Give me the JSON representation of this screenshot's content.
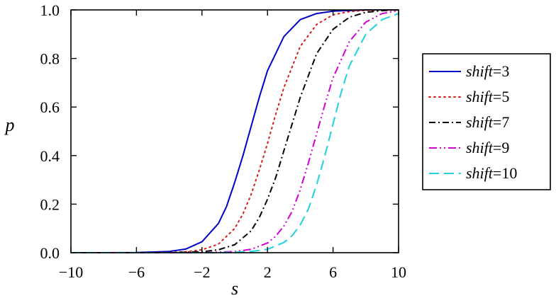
{
  "chart_data": {
    "type": "line",
    "xlabel": "s",
    "ylabel": "p",
    "xlim": [
      -10,
      10
    ],
    "ylim": [
      0,
      1
    ],
    "xticks": [
      -10,
      -6,
      -2,
      2,
      6,
      10
    ],
    "xtick_labels": [
      "−10",
      "−6",
      "−2",
      "2",
      "6",
      "10"
    ],
    "yticks": [
      0,
      0.2,
      0.4,
      0.6,
      0.8,
      1.0
    ],
    "ytick_labels": [
      "0.0",
      "0.2",
      "0.4",
      "0.6",
      "0.8",
      "1.0"
    ],
    "grid": false,
    "legend_position": "right",
    "series": [
      {
        "name": "shift=3",
        "name_italic": "shift",
        "name_rest": "=3",
        "color": "#0000c8",
        "style": "solid",
        "x": [
          -10,
          -8,
          -6,
          -4,
          -3,
          -2,
          -1,
          -0.5,
          0,
          0.5,
          1,
          1.5,
          2,
          3,
          4,
          5,
          6,
          8,
          10
        ],
        "y": [
          0.0,
          0.0,
          0.001,
          0.005,
          0.015,
          0.045,
          0.12,
          0.19,
          0.29,
          0.4,
          0.52,
          0.64,
          0.75,
          0.89,
          0.96,
          0.985,
          0.995,
          1.0,
          1.0
        ]
      },
      {
        "name": "shift=5",
        "name_italic": "shift",
        "name_rest": "=5",
        "color": "#d21e1e",
        "style": "dotted",
        "x": [
          -10,
          -6,
          -4,
          -3,
          -2,
          -1,
          0,
          0.5,
          1,
          1.5,
          2,
          2.5,
          3,
          4,
          5,
          6,
          7,
          8,
          10
        ],
        "y": [
          0.0,
          0.0,
          0.001,
          0.004,
          0.012,
          0.035,
          0.1,
          0.16,
          0.24,
          0.34,
          0.45,
          0.57,
          0.68,
          0.85,
          0.94,
          0.98,
          0.993,
          0.998,
          1.0
        ]
      },
      {
        "name": "shift=7",
        "name_italic": "shift",
        "name_rest": "=7",
        "color": "#000000",
        "style": "dashdot",
        "x": [
          -10,
          -4,
          -2,
          -1,
          0,
          1,
          1.5,
          2,
          2.5,
          3,
          3.5,
          4,
          5,
          6,
          7,
          8,
          9,
          10
        ],
        "y": [
          0.0,
          0.0,
          0.004,
          0.012,
          0.033,
          0.09,
          0.145,
          0.22,
          0.31,
          0.42,
          0.53,
          0.64,
          0.82,
          0.92,
          0.97,
          0.99,
          0.997,
          1.0
        ]
      },
      {
        "name": "shift=9",
        "name_italic": "shift",
        "name_rest": "=9",
        "color": "#d200d2",
        "style": "dashdotdot",
        "x": [
          -10,
          -2,
          0,
          1,
          2,
          2.5,
          3,
          3.5,
          4,
          4.5,
          5,
          5.5,
          6,
          7,
          8,
          9,
          10
        ],
        "y": [
          0.0,
          0.0,
          0.005,
          0.014,
          0.04,
          0.068,
          0.11,
          0.17,
          0.26,
          0.37,
          0.49,
          0.61,
          0.72,
          0.87,
          0.95,
          0.985,
          0.997
        ]
      },
      {
        "name": "shift=10",
        "name_italic": "shift",
        "name_rest": "=10",
        "color": "#1ed2dc",
        "style": "dashed",
        "x": [
          -10,
          -1,
          1,
          2,
          3,
          3.5,
          4,
          4.5,
          5,
          5.5,
          6,
          6.5,
          7,
          8,
          9,
          10
        ],
        "y": [
          0.0,
          0.0,
          0.005,
          0.014,
          0.042,
          0.07,
          0.115,
          0.18,
          0.28,
          0.4,
          0.53,
          0.66,
          0.77,
          0.9,
          0.96,
          0.985
        ]
      }
    ]
  }
}
